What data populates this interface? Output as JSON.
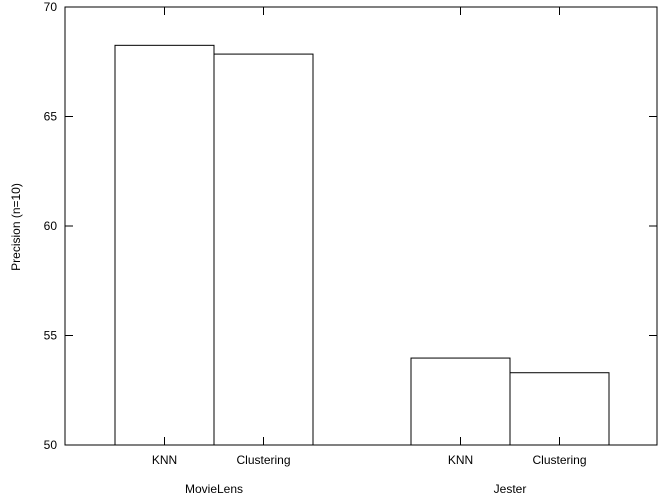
{
  "chart_data": {
    "type": "bar",
    "title": "",
    "xlabel": "",
    "ylabel": "Precision (n=10)",
    "ylim": [
      50,
      70
    ],
    "yticks": [
      50,
      55,
      60,
      65,
      70
    ],
    "grid": false,
    "groups": [
      {
        "name": "MovieLens",
        "bars": [
          {
            "label": "KNN",
            "value": 68.25
          },
          {
            "label": "Clustering",
            "value": 67.85
          }
        ]
      },
      {
        "name": "Jester",
        "bars": [
          {
            "label": "KNN",
            "value": 53.97
          },
          {
            "label": "Clustering",
            "value": 53.3
          }
        ]
      }
    ],
    "colors": {
      "bar_fill": "#ffffff",
      "stroke": "#000000"
    }
  }
}
